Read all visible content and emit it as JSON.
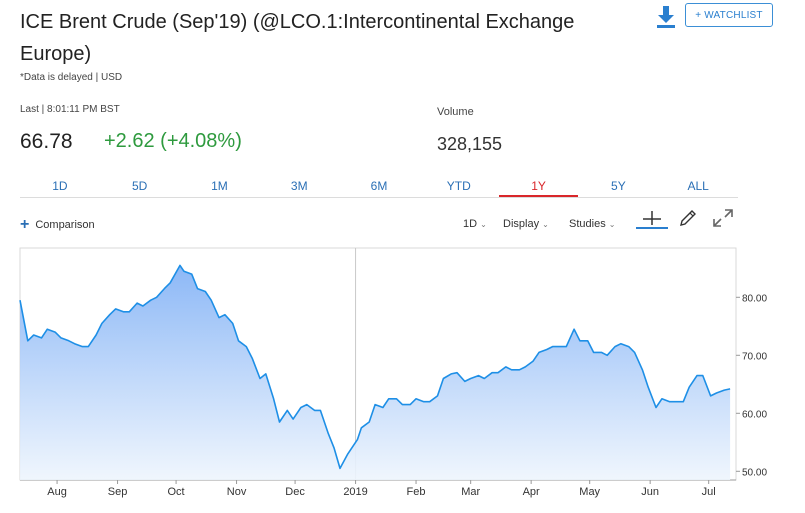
{
  "header": {
    "title": "ICE Brent Crude (Sep'19) (@LCO.1:Intercontinental Exchange Europe)",
    "delayed_note": "*Data is delayed | USD",
    "watchlist_label": "+ WATCHLIST",
    "download_icon": "download-icon"
  },
  "quote": {
    "last_label": "Last | 8:01:11 PM BST",
    "last_price": "66.78",
    "change": "+2.62 (+4.08%)",
    "volume_label": "Volume",
    "volume": "328,155",
    "change_color": "#2e9a3e"
  },
  "ranges": {
    "items": [
      "1D",
      "5D",
      "1M",
      "3M",
      "6M",
      "YTD",
      "1Y",
      "5Y",
      "ALL"
    ],
    "active": "1Y",
    "active_color": "#d9262a"
  },
  "toolbar": {
    "comparison_label": "Comparison",
    "interval_label": "1D",
    "display_label": "Display",
    "studies_label": "Studies",
    "icons": [
      "crosshair-icon",
      "pencil-icon",
      "expand-icon"
    ]
  },
  "chart_data": {
    "type": "area",
    "series": [
      {
        "x": [
          "2018-07-13",
          "2018-07-17",
          "2018-07-20",
          "2018-07-24",
          "2018-07-27",
          "2018-07-31",
          "2018-08-03",
          "2018-08-07",
          "2018-08-10",
          "2018-08-14",
          "2018-08-17",
          "2018-08-21",
          "2018-08-24",
          "2018-08-28",
          "2018-08-31",
          "2018-09-04",
          "2018-09-07",
          "2018-09-11",
          "2018-09-14",
          "2018-09-18",
          "2018-09-21",
          "2018-09-25",
          "2018-09-28",
          "2018-10-03",
          "2018-10-05",
          "2018-10-09",
          "2018-10-12",
          "2018-10-16",
          "2018-10-19",
          "2018-10-23",
          "2018-10-26",
          "2018-10-30",
          "2018-11-02",
          "2018-11-06",
          "2018-11-09",
          "2018-11-13",
          "2018-11-16",
          "2018-11-20",
          "2018-11-23",
          "2018-11-27",
          "2018-11-30",
          "2018-12-04",
          "2018-12-07",
          "2018-12-11",
          "2018-12-14",
          "2018-12-18",
          "2018-12-21",
          "2018-12-24",
          "2018-12-28",
          "2019-01-02",
          "2019-01-04",
          "2019-01-08",
          "2019-01-11",
          "2019-01-15",
          "2019-01-18",
          "2019-01-22",
          "2019-01-25",
          "2019-01-29",
          "2019-02-01",
          "2019-02-05",
          "2019-02-08",
          "2019-02-12",
          "2019-02-15",
          "2019-02-19",
          "2019-02-22",
          "2019-02-26",
          "2019-03-01",
          "2019-03-05",
          "2019-03-08",
          "2019-03-12",
          "2019-03-15",
          "2019-03-19",
          "2019-03-22",
          "2019-03-26",
          "2019-03-29",
          "2019-04-02",
          "2019-04-05",
          "2019-04-09",
          "2019-04-12",
          "2019-04-16",
          "2019-04-19",
          "2019-04-23",
          "2019-04-26",
          "2019-04-30",
          "2019-05-03",
          "2019-05-07",
          "2019-05-10",
          "2019-05-14",
          "2019-05-17",
          "2019-05-21",
          "2019-05-24",
          "2019-05-28",
          "2019-05-31",
          "2019-06-04",
          "2019-06-07",
          "2019-06-11",
          "2019-06-14",
          "2019-06-18",
          "2019-06-21",
          "2019-06-25",
          "2019-06-28",
          "2019-07-02",
          "2019-07-05",
          "2019-07-09",
          "2019-07-12"
        ],
        "values": [
          79.5,
          72.5,
          73.5,
          73.0,
          74.5,
          74.0,
          73.0,
          72.5,
          72.0,
          71.5,
          71.5,
          73.5,
          75.5,
          77.0,
          78.0,
          77.5,
          77.5,
          79.0,
          78.5,
          79.5,
          80.0,
          81.5,
          82.5,
          85.5,
          84.5,
          84.0,
          81.5,
          81.0,
          79.5,
          76.5,
          77.0,
          75.5,
          72.5,
          71.5,
          69.5,
          66.0,
          66.8,
          62.5,
          58.5,
          60.5,
          59.0,
          61.0,
          61.5,
          60.5,
          60.5,
          56.5,
          54.0,
          50.5,
          53.0,
          55.5,
          57.5,
          58.5,
          61.5,
          61.0,
          62.5,
          62.5,
          61.5,
          61.5,
          62.5,
          62.0,
          62.0,
          63.0,
          66.0,
          66.8,
          67.0,
          65.5,
          66.0,
          66.5,
          66.0,
          67.0,
          67.0,
          68.0,
          67.5,
          67.5,
          68.0,
          69.0,
          70.5,
          71.0,
          71.5,
          71.5,
          71.5,
          74.5,
          72.5,
          72.5,
          70.5,
          70.5,
          70.0,
          71.5,
          72.0,
          71.5,
          70.5,
          67.5,
          64.5,
          61.0,
          62.5,
          62.0,
          62.0,
          62.0,
          64.5,
          66.5,
          66.5,
          63.0,
          63.5,
          64.0,
          64.2
        ]
      }
    ],
    "x_tick_labels": [
      "Aug",
      "Sep",
      "Oct",
      "Nov",
      "Dec",
      "2019",
      "Feb",
      "Mar",
      "Apr",
      "May",
      "Jun",
      "Jul"
    ],
    "x_tick_dates": [
      "2018-08-01",
      "2018-09-01",
      "2018-10-01",
      "2018-11-01",
      "2018-12-01",
      "2019-01-01",
      "2019-02-01",
      "2019-03-01",
      "2019-04-01",
      "2019-05-01",
      "2019-06-01",
      "2019-07-01"
    ],
    "x_range": [
      "2018-07-13",
      "2019-07-15"
    ],
    "y_tick_labels": [
      "50.00",
      "60.00",
      "70.00",
      "80.00"
    ],
    "y_ticks": [
      50,
      60,
      70,
      80
    ],
    "ylim": [
      48.5,
      88.5
    ],
    "y_axis_side": "right",
    "vertical_line_date": "2019-01-01",
    "line_color": "#1e8fe6",
    "fill_top_color": "#86b4f6",
    "fill_bottom_color": "#eef5fd",
    "grid": false
  }
}
